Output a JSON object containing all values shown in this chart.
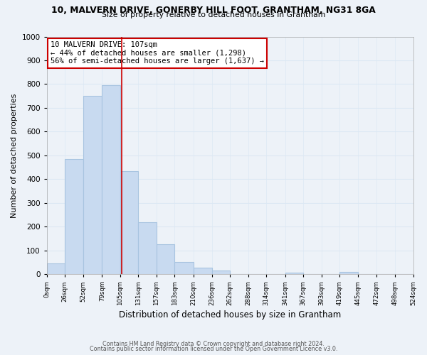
{
  "title_line1": "10, MALVERN DRIVE, GONERBY HILL FOOT, GRANTHAM, NG31 8GA",
  "title_line2": "Size of property relative to detached houses in Grantham",
  "xlabel": "Distribution of detached houses by size in Grantham",
  "ylabel": "Number of detached properties",
  "bin_edges": [
    0,
    26,
    52,
    79,
    105,
    131,
    157,
    183,
    210,
    236,
    262,
    288,
    314,
    341,
    367,
    393,
    419,
    445,
    472,
    498,
    524
  ],
  "bar_heights": [
    45,
    485,
    750,
    795,
    435,
    220,
    125,
    52,
    28,
    15,
    0,
    0,
    0,
    5,
    0,
    0,
    8,
    0,
    0,
    0
  ],
  "bar_color": "#c8daf0",
  "bar_edge_color": "#a8c4e0",
  "property_value": 107,
  "vline_color": "#cc0000",
  "annotation_text": "10 MALVERN DRIVE: 107sqm\n← 44% of detached houses are smaller (1,298)\n56% of semi-detached houses are larger (1,637) →",
  "annotation_box_color": "#ffffff",
  "annotation_box_edge": "#cc0000",
  "ylim": [
    0,
    1000
  ],
  "tick_labels": [
    "0sqm",
    "26sqm",
    "52sqm",
    "79sqm",
    "105sqm",
    "131sqm",
    "157sqm",
    "183sqm",
    "210sqm",
    "236sqm",
    "262sqm",
    "288sqm",
    "314sqm",
    "341sqm",
    "367sqm",
    "393sqm",
    "419sqm",
    "445sqm",
    "472sqm",
    "498sqm",
    "524sqm"
  ],
  "footer_line1": "Contains HM Land Registry data © Crown copyright and database right 2024.",
  "footer_line2": "Contains public sector information licensed under the Open Government Licence v3.0.",
  "grid_color": "#dce8f4",
  "background_color": "#edf2f8"
}
